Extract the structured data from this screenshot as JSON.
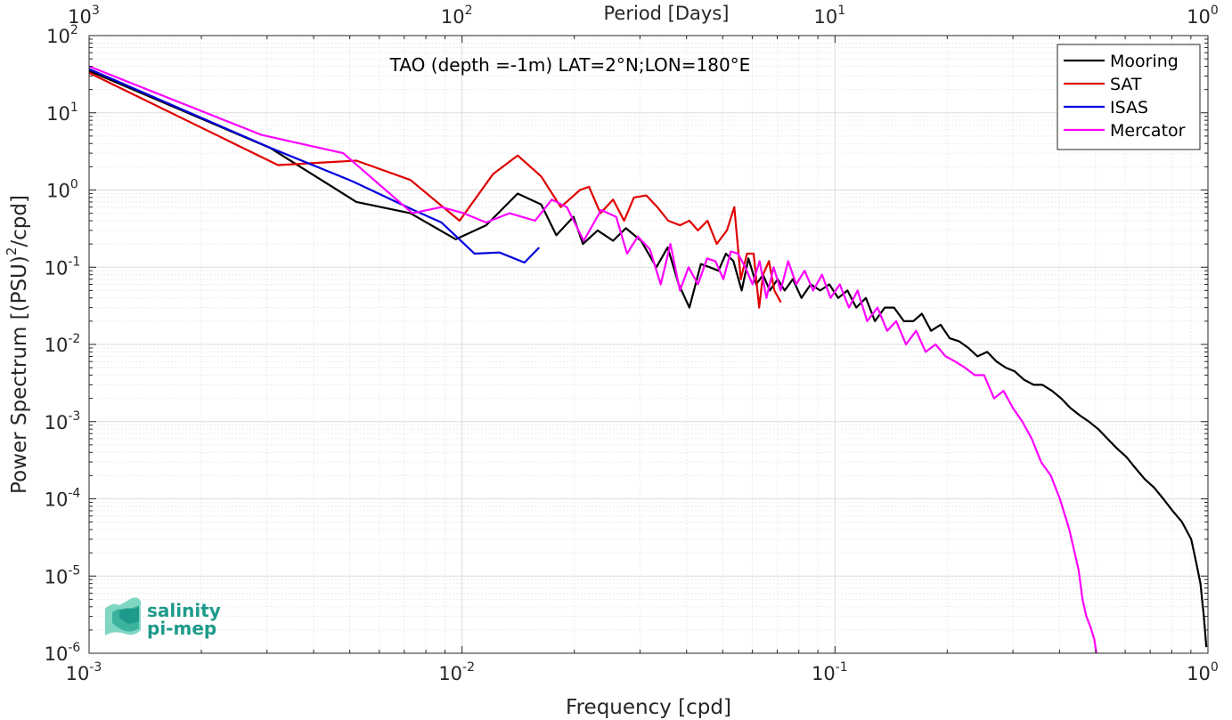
{
  "chart_data": {
    "type": "line",
    "title": "TAO (depth =-1m) LAT=2°N;LON=180°E",
    "xlabel": "Frequency [cpd]",
    "ylabel": "Power Spectrum [(PSU)^2/cpd]",
    "ylabel_parts": {
      "pre": "Power Spectrum [(PSU)",
      "sup": "2",
      "post": "/cpd]"
    },
    "top_xlabel": "Period [Days]",
    "xscale": "log",
    "yscale": "log",
    "xlim": [
      0.001,
      1
    ],
    "ylim": [
      1e-06,
      100
    ],
    "grid": true,
    "legend_position": "top-right",
    "x_ticks": [
      {
        "value": 0.001,
        "base": "10",
        "exp": "-3"
      },
      {
        "value": 0.01,
        "base": "10",
        "exp": "-2"
      },
      {
        "value": 0.1,
        "base": "10",
        "exp": "-1"
      },
      {
        "value": 1,
        "base": "10",
        "exp": "0"
      }
    ],
    "top_ticks": [
      {
        "value": 0.001,
        "base": "10",
        "exp": "3"
      },
      {
        "value": 0.01,
        "base": "10",
        "exp": "2"
      },
      {
        "value": 0.1,
        "base": "10",
        "exp": "1"
      },
      {
        "value": 1,
        "base": "10",
        "exp": "0"
      }
    ],
    "y_ticks": [
      {
        "value": 100,
        "base": "10",
        "exp": "2"
      },
      {
        "value": 10,
        "base": "10",
        "exp": "1"
      },
      {
        "value": 1,
        "base": "10",
        "exp": "0"
      },
      {
        "value": 0.1,
        "base": "10",
        "exp": "-1"
      },
      {
        "value": 0.01,
        "base": "10",
        "exp": "-2"
      },
      {
        "value": 0.001,
        "base": "10",
        "exp": "-3"
      },
      {
        "value": 0.0001,
        "base": "10",
        "exp": "-4"
      },
      {
        "value": 1e-05,
        "base": "10",
        "exp": "-5"
      },
      {
        "value": 1e-06,
        "base": "10",
        "exp": "-6"
      }
    ],
    "series": [
      {
        "name": "Mooring",
        "color": "#000000",
        "x": [
          0.001,
          0.00306,
          0.00521,
          0.00727,
          0.00962,
          0.0116,
          0.0141,
          0.0163,
          0.0179,
          0.0199,
          0.0211,
          0.0231,
          0.0254,
          0.0275,
          0.0302,
          0.0332,
          0.0356,
          0.0381,
          0.0407,
          0.0437,
          0.0462,
          0.0487,
          0.051,
          0.0534,
          0.0562,
          0.0586,
          0.0615,
          0.0641,
          0.0669,
          0.0702,
          0.0733,
          0.0771,
          0.0813,
          0.0861,
          0.0913,
          0.0966,
          0.102,
          0.108,
          0.114,
          0.121,
          0.128,
          0.136,
          0.144,
          0.153,
          0.162,
          0.171,
          0.181,
          0.192,
          0.203,
          0.215,
          0.228,
          0.241,
          0.256,
          0.271,
          0.287,
          0.303,
          0.321,
          0.341,
          0.36,
          0.382,
          0.404,
          0.428,
          0.454,
          0.48,
          0.508,
          0.538,
          0.57,
          0.604,
          0.639,
          0.677,
          0.717,
          0.759,
          0.804,
          0.852,
          0.902,
          0.93,
          0.955,
          0.975,
          0.99
        ],
        "y": [
          35,
          3.5,
          0.7,
          0.5,
          0.23,
          0.35,
          0.9,
          0.65,
          0.26,
          0.45,
          0.2,
          0.3,
          0.22,
          0.32,
          0.22,
          0.1,
          0.18,
          0.06,
          0.03,
          0.11,
          0.1,
          0.09,
          0.15,
          0.12,
          0.05,
          0.13,
          0.06,
          0.08,
          0.05,
          0.07,
          0.05,
          0.07,
          0.04,
          0.06,
          0.05,
          0.06,
          0.04,
          0.05,
          0.03,
          0.04,
          0.02,
          0.03,
          0.03,
          0.02,
          0.02,
          0.025,
          0.015,
          0.018,
          0.012,
          0.011,
          0.009,
          0.007,
          0.008,
          0.006,
          0.005,
          0.0045,
          0.0035,
          0.003,
          0.003,
          0.0025,
          0.002,
          0.0015,
          0.0012,
          0.001,
          0.0008,
          0.0006,
          0.00045,
          0.00035,
          0.00025,
          0.00018,
          0.00014,
          0.0001,
          7e-05,
          5e-05,
          3e-05,
          1.5e-05,
          8e-06,
          3e-06,
          1.2e-06
        ]
      },
      {
        "name": "SAT",
        "color": "#e00000",
        "x": [
          0.001,
          0.00321,
          0.00521,
          0.00727,
          0.00985,
          0.0121,
          0.0141,
          0.0163,
          0.0184,
          0.0207,
          0.0219,
          0.0235,
          0.0254,
          0.0272,
          0.0289,
          0.0312,
          0.0334,
          0.0357,
          0.0384,
          0.0407,
          0.0429,
          0.0455,
          0.0482,
          0.0513,
          0.0537,
          0.0559,
          0.0581,
          0.0605,
          0.0626,
          0.0641,
          0.0665,
          0.0688,
          0.0716
        ],
        "y": [
          33,
          2.1,
          2.4,
          1.35,
          0.4,
          1.6,
          2.8,
          1.5,
          0.6,
          1.0,
          1.1,
          0.5,
          0.75,
          0.4,
          0.8,
          0.85,
          0.6,
          0.4,
          0.35,
          0.4,
          0.3,
          0.4,
          0.2,
          0.3,
          0.6,
          0.07,
          0.15,
          0.15,
          0.03,
          0.08,
          0.12,
          0.05,
          0.035
        ]
      },
      {
        "name": "ISAS",
        "color": "#0000dd",
        "x": [
          0.001,
          0.00307,
          0.00508,
          0.00741,
          0.00881,
          0.0108,
          0.0126,
          0.0147,
          0.0161
        ],
        "y": [
          37,
          3.5,
          1.3,
          0.55,
          0.38,
          0.15,
          0.155,
          0.115,
          0.18
        ]
      },
      {
        "name": "Mercator",
        "color": "#ff00ff",
        "x": [
          0.001,
          0.00289,
          0.0048,
          0.00736,
          0.00881,
          0.0101,
          0.0116,
          0.0134,
          0.0157,
          0.0174,
          0.0191,
          0.0212,
          0.0236,
          0.0259,
          0.0277,
          0.0296,
          0.0319,
          0.0341,
          0.0362,
          0.0384,
          0.0405,
          0.0429,
          0.0454,
          0.0478,
          0.0502,
          0.0526,
          0.0549,
          0.0575,
          0.0601,
          0.0628,
          0.0655,
          0.0685,
          0.0715,
          0.0749,
          0.0787,
          0.0829,
          0.0874,
          0.0923,
          0.0973,
          0.103,
          0.109,
          0.115,
          0.122,
          0.13,
          0.138,
          0.146,
          0.155,
          0.165,
          0.175,
          0.186,
          0.198,
          0.21,
          0.223,
          0.237,
          0.251,
          0.267,
          0.283,
          0.3,
          0.318,
          0.337,
          0.357,
          0.379,
          0.401,
          0.425,
          0.45,
          0.461,
          0.472,
          0.484,
          0.496,
          0.502
        ],
        "y": [
          40,
          5.2,
          3.0,
          0.5,
          0.6,
          0.5,
          0.38,
          0.5,
          0.4,
          0.75,
          0.6,
          0.22,
          0.55,
          0.45,
          0.15,
          0.25,
          0.17,
          0.06,
          0.2,
          0.05,
          0.1,
          0.06,
          0.13,
          0.12,
          0.07,
          0.16,
          0.15,
          0.1,
          0.06,
          0.12,
          0.04,
          0.1,
          0.05,
          0.12,
          0.06,
          0.09,
          0.05,
          0.08,
          0.04,
          0.06,
          0.03,
          0.05,
          0.02,
          0.03,
          0.015,
          0.02,
          0.01,
          0.015,
          0.008,
          0.01,
          0.007,
          0.006,
          0.005,
          0.004,
          0.004,
          0.002,
          0.0025,
          0.0015,
          0.001,
          0.0006,
          0.0003,
          0.0002,
          0.0001,
          4e-05,
          1.2e-05,
          5e-06,
          3e-06,
          2.2e-06,
          1.5e-06,
          1e-06
        ]
      }
    ]
  },
  "logo": {
    "line1": "salinity",
    "line2": "pi-mep",
    "color": "#1d9a8a"
  }
}
